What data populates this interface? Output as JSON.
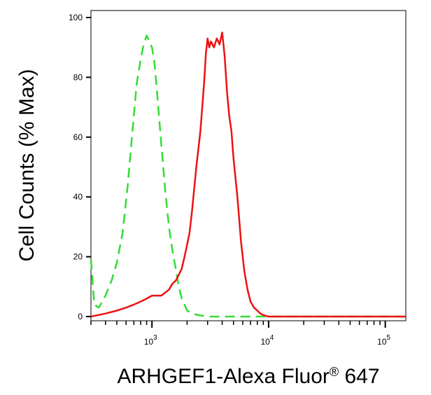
{
  "chart_data": {
    "type": "line",
    "xscale": "log",
    "xlabel": "ARHGEF1-Alexa Fluor",
    "xlabel_superscript": "®",
    "xlabel_suffix": " 647",
    "ylabel": "Cell Counts (% Max)",
    "xlim": [
      300,
      150000
    ],
    "ylim": [
      0,
      100
    ],
    "grid": false,
    "yticks": [
      0,
      20,
      40,
      60,
      80,
      100
    ],
    "ytick_labels": [
      "0",
      "20",
      "40",
      "60",
      "80",
      "100"
    ],
    "xticks_major": [
      {
        "value": 1000,
        "base": "10",
        "exp": "3"
      },
      {
        "value": 10000,
        "base": "10",
        "exp": "4"
      },
      {
        "value": 100000,
        "base": "10",
        "exp": "5"
      }
    ],
    "series": [
      {
        "color": "#33dd33",
        "style": "dashed",
        "x": [
          300,
          320,
          350,
          400,
          450,
          500,
          560,
          620,
          680,
          740,
          800,
          850,
          900,
          950,
          1000,
          1050,
          1100,
          1200,
          1300,
          1400,
          1500,
          1600,
          1700,
          1800,
          1900,
          2000,
          2200,
          2500,
          3000,
          4000,
          6000,
          10000,
          30000,
          150000
        ],
        "y": [
          19,
          4,
          3,
          7,
          12,
          18,
          28,
          44,
          62,
          78,
          86,
          91,
          94,
          92,
          90,
          85,
          76,
          58,
          42,
          30,
          22,
          16,
          10,
          6,
          4,
          2,
          1,
          0.5,
          0,
          0,
          0,
          0,
          0,
          0
        ]
      },
      {
        "color": "#ee1111",
        "style": "solid",
        "x": [
          300,
          400,
          500,
          600,
          700,
          800,
          900,
          1000,
          1100,
          1200,
          1300,
          1400,
          1500,
          1600,
          1700,
          1800,
          1900,
          2000,
          2100,
          2200,
          2400,
          2600,
          2800,
          2900,
          3000,
          3100,
          3200,
          3400,
          3600,
          3800,
          4000,
          4200,
          4400,
          4600,
          4800,
          5000,
          5400,
          5800,
          6200,
          6600,
          7000,
          7500,
          8000,
          8500,
          9000,
          10000,
          12000,
          20000,
          50000,
          150000
        ],
        "y": [
          0,
          1,
          2,
          3,
          4,
          5,
          6,
          7,
          7,
          7,
          8,
          9,
          11,
          12,
          14,
          16,
          20,
          24,
          28,
          35,
          50,
          62,
          78,
          88,
          93,
          90,
          92,
          90,
          93,
          91,
          95,
          87,
          75,
          67,
          62,
          53,
          40,
          25,
          15,
          9,
          5,
          3,
          2,
          1,
          0.5,
          0,
          0,
          0,
          0,
          0
        ]
      }
    ]
  }
}
